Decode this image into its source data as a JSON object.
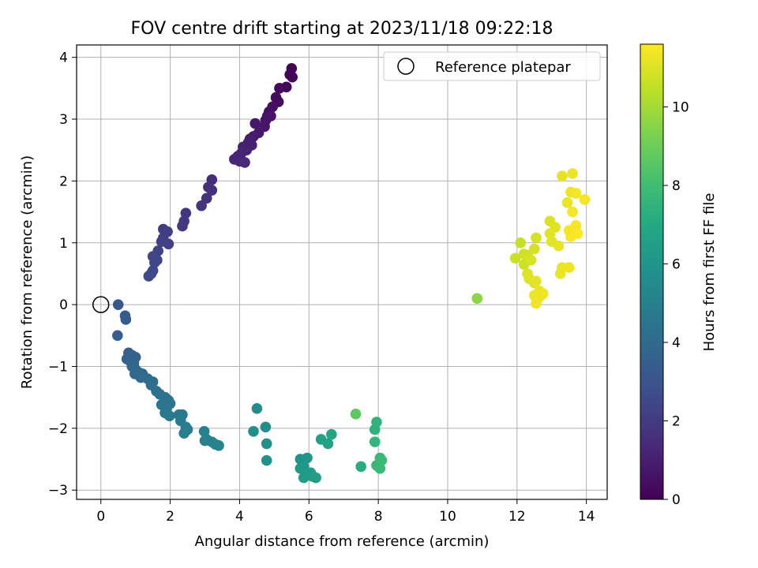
{
  "chart_data": {
    "type": "scatter",
    "title": "FOV centre drift starting at 2023/11/18 09:22:18",
    "xlabel": "Angular distance from reference (arcmin)",
    "ylabel": "Rotation from reference (arcmin)",
    "xlim": [
      -0.7,
      14.6
    ],
    "ylim": [
      -3.15,
      4.2
    ],
    "xticks": [
      0,
      2,
      4,
      6,
      8,
      10,
      12,
      14
    ],
    "yticks": [
      -3,
      -2,
      -1,
      0,
      1,
      2,
      3,
      4
    ],
    "grid": true,
    "legend": {
      "placement": "top-right",
      "entries": [
        "Reference platepar"
      ]
    },
    "reference_point": {
      "x": 0,
      "y": 0,
      "marker": "open-circle"
    },
    "colorbar": {
      "label": "Hours from first FF file",
      "colormap": "viridis",
      "range": [
        0,
        11.6
      ],
      "ticks": [
        0,
        2,
        4,
        6,
        8,
        10
      ]
    },
    "series": [
      {
        "points": [
          {
            "x": 5.5,
            "y": 3.82,
            "c": 0.05
          },
          {
            "x": 5.45,
            "y": 3.72,
            "c": 0.1
          },
          {
            "x": 5.52,
            "y": 3.68,
            "c": 0.15
          },
          {
            "x": 5.35,
            "y": 3.52,
            "c": 0.25
          },
          {
            "x": 5.15,
            "y": 3.5,
            "c": 0.3
          },
          {
            "x": 5.05,
            "y": 3.35,
            "c": 0.35
          },
          {
            "x": 5.12,
            "y": 3.28,
            "c": 0.4
          },
          {
            "x": 4.95,
            "y": 3.2,
            "c": 0.45
          },
          {
            "x": 4.85,
            "y": 3.12,
            "c": 0.5
          },
          {
            "x": 4.8,
            "y": 3.05,
            "c": 0.55
          },
          {
            "x": 4.75,
            "y": 2.98,
            "c": 0.6
          },
          {
            "x": 4.9,
            "y": 3.05,
            "c": 0.65
          },
          {
            "x": 4.72,
            "y": 2.88,
            "c": 0.7
          },
          {
            "x": 4.45,
            "y": 2.93,
            "c": 0.75
          },
          {
            "x": 4.55,
            "y": 2.78,
            "c": 0.8
          },
          {
            "x": 4.4,
            "y": 2.72,
            "c": 0.85
          },
          {
            "x": 4.3,
            "y": 2.68,
            "c": 0.9
          },
          {
            "x": 4.25,
            "y": 2.62,
            "c": 0.95
          },
          {
            "x": 4.35,
            "y": 2.58,
            "c": 1.0
          },
          {
            "x": 4.1,
            "y": 2.55,
            "c": 1.05
          },
          {
            "x": 4.2,
            "y": 2.5,
            "c": 1.1
          },
          {
            "x": 4.05,
            "y": 2.45,
            "c": 1.15
          },
          {
            "x": 3.95,
            "y": 2.4,
            "c": 1.2
          },
          {
            "x": 3.85,
            "y": 2.35,
            "c": 1.25
          },
          {
            "x": 4.0,
            "y": 2.32,
            "c": 1.3
          },
          {
            "x": 4.15,
            "y": 2.3,
            "c": 1.35
          },
          {
            "x": 4.3,
            "y": 2.62,
            "c": 1.0
          },
          {
            "x": 3.2,
            "y": 2.02,
            "c": 1.5
          },
          {
            "x": 3.1,
            "y": 1.9,
            "c": 1.55
          },
          {
            "x": 3.2,
            "y": 1.85,
            "c": 1.6
          },
          {
            "x": 3.05,
            "y": 1.72,
            "c": 1.65
          },
          {
            "x": 2.9,
            "y": 1.6,
            "c": 1.7
          },
          {
            "x": 2.45,
            "y": 1.48,
            "c": 1.8
          },
          {
            "x": 2.4,
            "y": 1.35,
            "c": 1.85
          },
          {
            "x": 2.35,
            "y": 1.27,
            "c": 1.9
          },
          {
            "x": 1.8,
            "y": 1.22,
            "c": 2.0
          },
          {
            "x": 1.92,
            "y": 1.18,
            "c": 2.05
          },
          {
            "x": 1.8,
            "y": 1.08,
            "c": 2.1
          },
          {
            "x": 1.75,
            "y": 1.02,
            "c": 2.15
          },
          {
            "x": 1.95,
            "y": 0.98,
            "c": 2.2
          },
          {
            "x": 1.65,
            "y": 0.87,
            "c": 2.3
          },
          {
            "x": 1.5,
            "y": 0.78,
            "c": 2.35
          },
          {
            "x": 1.62,
            "y": 0.72,
            "c": 2.4
          },
          {
            "x": 1.55,
            "y": 0.68,
            "c": 2.45
          },
          {
            "x": 1.5,
            "y": 0.55,
            "c": 2.5
          },
          {
            "x": 1.45,
            "y": 0.5,
            "c": 2.55
          },
          {
            "x": 1.38,
            "y": 0.46,
            "c": 2.6
          },
          {
            "x": 0.5,
            "y": 0.0,
            "c": 3.2
          },
          {
            "x": 0.7,
            "y": -0.18,
            "c": 3.3
          },
          {
            "x": 0.72,
            "y": -0.24,
            "c": 3.35
          },
          {
            "x": 0.48,
            "y": -0.5,
            "c": 3.4
          },
          {
            "x": 0.8,
            "y": -0.78,
            "c": 3.5
          },
          {
            "x": 0.9,
            "y": -0.82,
            "c": 3.55
          },
          {
            "x": 1.0,
            "y": -0.85,
            "c": 3.6
          },
          {
            "x": 0.75,
            "y": -0.88,
            "c": 3.65
          },
          {
            "x": 0.85,
            "y": -0.92,
            "c": 3.7
          },
          {
            "x": 0.95,
            "y": -0.95,
            "c": 3.75
          },
          {
            "x": 0.9,
            "y": -1.0,
            "c": 3.8
          },
          {
            "x": 1.0,
            "y": -1.05,
            "c": 3.85
          },
          {
            "x": 1.1,
            "y": -1.1,
            "c": 3.9
          },
          {
            "x": 0.98,
            "y": -1.12,
            "c": 3.95
          },
          {
            "x": 1.2,
            "y": -1.12,
            "c": 4.0
          },
          {
            "x": 1.15,
            "y": -1.18,
            "c": 4.05
          },
          {
            "x": 1.35,
            "y": -1.2,
            "c": 4.1
          },
          {
            "x": 1.5,
            "y": -1.25,
            "c": 4.15
          },
          {
            "x": 1.45,
            "y": -1.3,
            "c": 4.2
          },
          {
            "x": 1.6,
            "y": -1.4,
            "c": 4.25
          },
          {
            "x": 1.7,
            "y": -1.45,
            "c": 4.3
          },
          {
            "x": 1.85,
            "y": -1.5,
            "c": 4.35
          },
          {
            "x": 1.95,
            "y": -1.55,
            "c": 4.4
          },
          {
            "x": 2.0,
            "y": -1.6,
            "c": 4.45
          },
          {
            "x": 1.75,
            "y": -1.62,
            "c": 4.5
          },
          {
            "x": 1.9,
            "y": -1.68,
            "c": 4.55
          },
          {
            "x": 1.85,
            "y": -1.75,
            "c": 4.6
          },
          {
            "x": 2.25,
            "y": -1.78,
            "c": 4.65
          },
          {
            "x": 2.35,
            "y": -1.78,
            "c": 4.7
          },
          {
            "x": 1.98,
            "y": -1.8,
            "c": 4.75
          },
          {
            "x": 2.3,
            "y": -1.88,
            "c": 4.8
          },
          {
            "x": 2.45,
            "y": -1.98,
            "c": 4.85
          },
          {
            "x": 2.5,
            "y": -2.02,
            "c": 4.9
          },
          {
            "x": 2.4,
            "y": -2.08,
            "c": 4.95
          },
          {
            "x": 2.98,
            "y": -2.05,
            "c": 5.0
          },
          {
            "x": 3.05,
            "y": -2.18,
            "c": 5.05
          },
          {
            "x": 3.0,
            "y": -2.2,
            "c": 5.1
          },
          {
            "x": 3.2,
            "y": -2.22,
            "c": 5.15
          },
          {
            "x": 3.3,
            "y": -2.26,
            "c": 5.2
          },
          {
            "x": 3.4,
            "y": -2.28,
            "c": 5.25
          },
          {
            "x": 4.5,
            "y": -1.68,
            "c": 5.6
          },
          {
            "x": 4.75,
            "y": -1.98,
            "c": 5.65
          },
          {
            "x": 4.4,
            "y": -2.05,
            "c": 5.7
          },
          {
            "x": 4.78,
            "y": -2.25,
            "c": 5.75
          },
          {
            "x": 4.78,
            "y": -2.52,
            "c": 5.8
          },
          {
            "x": 5.75,
            "y": -2.5,
            "c": 6.0
          },
          {
            "x": 5.95,
            "y": -2.48,
            "c": 6.05
          },
          {
            "x": 5.85,
            "y": -2.62,
            "c": 6.1
          },
          {
            "x": 5.75,
            "y": -2.65,
            "c": 6.15
          },
          {
            "x": 5.9,
            "y": -2.7,
            "c": 6.2
          },
          {
            "x": 6.05,
            "y": -2.72,
            "c": 6.25
          },
          {
            "x": 5.95,
            "y": -2.75,
            "c": 6.3
          },
          {
            "x": 5.85,
            "y": -2.8,
            "c": 6.35
          },
          {
            "x": 6.1,
            "y": -2.78,
            "c": 6.4
          },
          {
            "x": 6.2,
            "y": -2.8,
            "c": 6.45
          },
          {
            "x": 6.35,
            "y": -2.18,
            "c": 6.6
          },
          {
            "x": 6.55,
            "y": -2.25,
            "c": 6.7
          },
          {
            "x": 6.65,
            "y": -2.1,
            "c": 6.8
          },
          {
            "x": 7.5,
            "y": -2.62,
            "c": 7.2
          },
          {
            "x": 7.9,
            "y": -2.02,
            "c": 7.4
          },
          {
            "x": 7.95,
            "y": -1.9,
            "c": 7.5
          },
          {
            "x": 7.9,
            "y": -2.22,
            "c": 7.6
          },
          {
            "x": 7.95,
            "y": -2.6,
            "c": 7.7
          },
          {
            "x": 8.05,
            "y": -2.65,
            "c": 7.75
          },
          {
            "x": 8.05,
            "y": -2.48,
            "c": 7.8
          },
          {
            "x": 8.1,
            "y": -2.52,
            "c": 7.85
          },
          {
            "x": 7.35,
            "y": -1.77,
            "c": 8.7
          },
          {
            "x": 10.85,
            "y": 0.1,
            "c": 9.6
          },
          {
            "x": 12.1,
            "y": 1.0,
            "c": 10.6
          },
          {
            "x": 11.95,
            "y": 0.75,
            "c": 10.65
          },
          {
            "x": 12.2,
            "y": 0.65,
            "c": 10.7
          },
          {
            "x": 12.3,
            "y": 0.8,
            "c": 10.75
          },
          {
            "x": 12.2,
            "y": 0.82,
            "c": 10.8
          },
          {
            "x": 12.5,
            "y": 0.9,
            "c": 10.85
          },
          {
            "x": 12.55,
            "y": 1.08,
            "c": 10.9
          },
          {
            "x": 12.4,
            "y": 0.72,
            "c": 10.95
          },
          {
            "x": 12.3,
            "y": 0.5,
            "c": 11.0
          },
          {
            "x": 12.35,
            "y": 0.42,
            "c": 11.05
          },
          {
            "x": 12.5,
            "y": 0.35,
            "c": 11.1
          },
          {
            "x": 12.55,
            "y": 0.38,
            "c": 11.15
          },
          {
            "x": 12.65,
            "y": 0.22,
            "c": 11.2
          },
          {
            "x": 12.7,
            "y": 0.15,
            "c": 11.25
          },
          {
            "x": 12.6,
            "y": 0.1,
            "c": 11.3
          },
          {
            "x": 12.5,
            "y": 0.15,
            "c": 11.3
          },
          {
            "x": 12.55,
            "y": 0.02,
            "c": 11.35
          },
          {
            "x": 12.75,
            "y": 0.18,
            "c": 11.35
          },
          {
            "x": 12.95,
            "y": 1.35,
            "c": 11.0
          },
          {
            "x": 13.1,
            "y": 1.25,
            "c": 11.05
          },
          {
            "x": 12.95,
            "y": 1.15,
            "c": 11.1
          },
          {
            "x": 13.0,
            "y": 1.02,
            "c": 11.15
          },
          {
            "x": 13.2,
            "y": 0.95,
            "c": 11.2
          },
          {
            "x": 13.25,
            "y": 0.5,
            "c": 11.25
          },
          {
            "x": 13.3,
            "y": 0.6,
            "c": 11.3
          },
          {
            "x": 13.5,
            "y": 0.6,
            "c": 11.35
          },
          {
            "x": 13.3,
            "y": 2.08,
            "c": 11.2
          },
          {
            "x": 13.6,
            "y": 2.12,
            "c": 11.25
          },
          {
            "x": 13.45,
            "y": 1.65,
            "c": 11.3
          },
          {
            "x": 13.55,
            "y": 1.82,
            "c": 11.35
          },
          {
            "x": 13.7,
            "y": 1.8,
            "c": 11.4
          },
          {
            "x": 13.95,
            "y": 1.7,
            "c": 11.45
          },
          {
            "x": 13.6,
            "y": 1.5,
            "c": 11.4
          },
          {
            "x": 13.5,
            "y": 1.2,
            "c": 11.45
          },
          {
            "x": 13.7,
            "y": 1.28,
            "c": 11.5
          },
          {
            "x": 13.55,
            "y": 1.1,
            "c": 11.5
          },
          {
            "x": 13.75,
            "y": 1.15,
            "c": 11.55
          }
        ]
      }
    ]
  }
}
